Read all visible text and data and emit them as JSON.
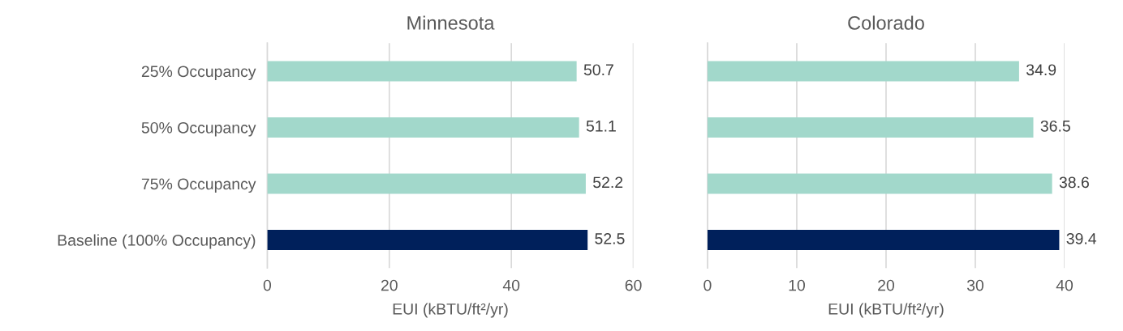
{
  "chart_data": [
    {
      "type": "bar",
      "orientation": "horizontal",
      "title": "Minnesota",
      "xlabel": "EUI (kBTU/ft²/yr)",
      "categories": [
        "25% Occupancy",
        "50% Occupancy",
        "75% Occupancy",
        "Baseline (100% Occupancy)"
      ],
      "values": [
        50.7,
        51.1,
        52.2,
        52.5
      ],
      "colors": [
        "#a2d8cb",
        "#a2d8cb",
        "#a2d8cb",
        "#00205b"
      ],
      "xlim": [
        0,
        60
      ],
      "xticks": [
        0,
        20,
        40,
        60
      ],
      "grid": "x",
      "data_labels": true
    },
    {
      "type": "bar",
      "orientation": "horizontal",
      "title": "Colorado",
      "xlabel": "EUI (kBTU/ft²/yr)",
      "categories": [
        null,
        null,
        null,
        null
      ],
      "values": [
        34.9,
        36.5,
        38.6,
        39.4
      ],
      "colors": [
        "#a2d8cb",
        "#a2d8cb",
        "#a2d8cb",
        "#00205b"
      ],
      "xlim": [
        0,
        40
      ],
      "xticks": [
        0,
        10,
        20,
        30,
        40
      ],
      "grid": "x",
      "data_labels": true
    }
  ]
}
